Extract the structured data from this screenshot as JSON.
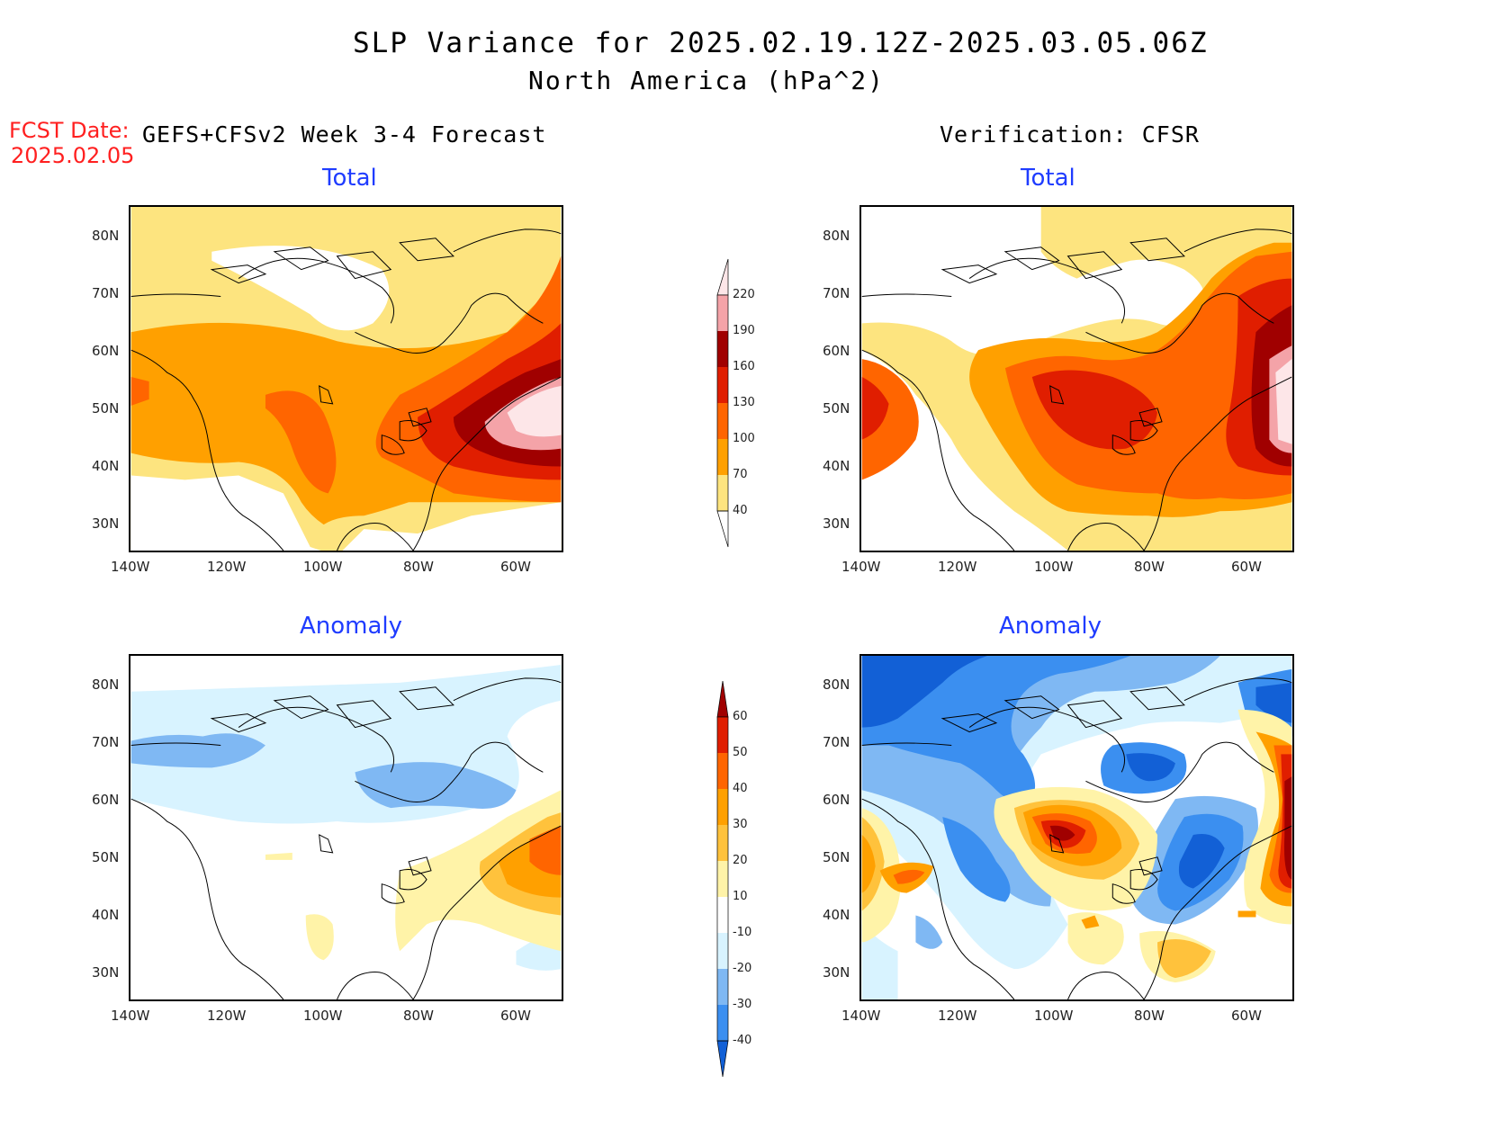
{
  "header": {
    "title_line1": "SLP Variance for 2025.02.19.12Z-2025.03.05.06Z",
    "title_line2": "North America (hPa^2)",
    "fcst_label": "FCST Date:",
    "fcst_date": "2025.02.05",
    "left_heading": "GEFS+CFSv2 Week 3-4 Forecast",
    "right_heading": "Verification: CFSR"
  },
  "panels": {
    "fcst_total": "Total",
    "verif_total": "Total",
    "fcst_anom": "Anomaly",
    "verif_anom": "Anomaly"
  },
  "axes": {
    "lat_labels": [
      "80N",
      "70N",
      "60N",
      "50N",
      "40N",
      "30N"
    ],
    "lon_labels": [
      "140W",
      "120W",
      "100W",
      "80W",
      "60W"
    ]
  },
  "colorbars": {
    "total": {
      "levels": [
        "40",
        "70",
        "100",
        "130",
        "160",
        "190",
        "220"
      ],
      "colors": [
        "#fde47f",
        "#ffa000",
        "#ff6500",
        "#e01e00",
        "#a00000",
        "#f4a3a8",
        "#fde6e8"
      ]
    },
    "anomaly": {
      "levels": [
        "-40",
        "-30",
        "-20",
        "-10",
        "10",
        "20",
        "30",
        "40",
        "50",
        "60"
      ],
      "colors": [
        "#1260d6",
        "#3b8ff0",
        "#7fb8f3",
        "#d8f3ff",
        "#ffffff",
        "#fff3a8",
        "#ffc23c",
        "#ffa000",
        "#ff6500",
        "#e01e00",
        "#a00000"
      ]
    }
  }
}
